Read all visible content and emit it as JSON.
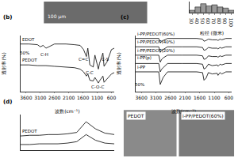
{
  "chart_data": [
    {
      "type": "bar",
      "xlabel": "粒径 (微米)",
      "bins": [
        25,
        35,
        45,
        55,
        65,
        75,
        85,
        95,
        105
      ],
      "values": [
        2,
        5,
        8,
        6,
        7,
        5,
        4,
        2
      ],
      "color": "#999999",
      "xlim": [
        25,
        105
      ],
      "xticks": [
        30,
        40,
        50,
        60,
        70,
        80,
        90,
        100
      ],
      "ylim": [
        0,
        10
      ],
      "tick_labels": "x",
      "grid": false
    },
    {
      "type": "line",
      "title": "(b)",
      "xlabel": "波数(cm⁻¹)",
      "ylabel": "透射率(%)",
      "x": [
        3800,
        3500,
        3200,
        3100,
        3000,
        2900,
        2600,
        2200,
        1900,
        1700,
        1580,
        1480,
        1430,
        1360,
        1240,
        1180,
        1060,
        1020,
        900,
        860,
        760,
        600,
        500
      ],
      "series": [
        {
          "name": "EDOT",
          "color": "#000000",
          "values": [
            88,
            88,
            87,
            84,
            86,
            82,
            88,
            88,
            87,
            86,
            80,
            70,
            82,
            58,
            55,
            72,
            52,
            60,
            75,
            56,
            62,
            80,
            82
          ]
        },
        {
          "name": "PEDOT",
          "color": "#000000",
          "values": [
            58,
            58,
            57,
            57,
            57,
            57,
            56,
            55,
            54,
            52,
            48,
            42,
            45,
            36,
            35,
            40,
            32,
            35,
            42,
            33,
            38,
            45,
            47
          ]
        }
      ],
      "xlim": [
        3800,
        500
      ],
      "xticks": [
        3600,
        3100,
        2600,
        2100,
        1600,
        1100,
        600
      ],
      "ylim": [
        20,
        100
      ],
      "tick_labels": "x",
      "grid": false,
      "annotations": [
        {
          "text": "50%",
          "x": 3650,
          "y": 75
        },
        {
          "text": "C-H",
          "x": 2950,
          "y": 73
        },
        {
          "text": "C=C",
          "x": 1580,
          "y": 66
        },
        {
          "text": "C-C",
          "x": 1360,
          "y": 47
        },
        {
          "text": "C-O-C",
          "x": 1080,
          "y": 26
        },
        {
          "text": "C-S",
          "x": 820,
          "y": 66
        }
      ]
    },
    {
      "type": "line",
      "title": "(c)",
      "xlabel": "波数(cm⁻¹)",
      "ylabel": "透射率(%)",
      "x": [
        3800,
        3500,
        3000,
        2950,
        2900,
        2850,
        2700,
        2200,
        1700,
        1500,
        1450,
        1380,
        1300,
        1170,
        1000,
        970,
        900,
        840,
        700,
        500
      ],
      "series": [
        {
          "name": "i-PP/PEDOT(60%)",
          "color": "#000000",
          "values": [
            96,
            96,
            96,
            90,
            92,
            93,
            96,
            96,
            96,
            95,
            92,
            93,
            95,
            94,
            94,
            93,
            95,
            94,
            96,
            96
          ]
        },
        {
          "name": "i-PP/PEDOT(40%)",
          "color": "#000000",
          "values": [
            84,
            84,
            84,
            76,
            79,
            80,
            84,
            84,
            84,
            83,
            79,
            80,
            83,
            82,
            82,
            81,
            83,
            82,
            84,
            84
          ]
        },
        {
          "name": "i-PP/PEDOT(20%)",
          "color": "#000000",
          "values": [
            72,
            72,
            72,
            62,
            66,
            68,
            72,
            72,
            72,
            71,
            66,
            67,
            71,
            70,
            70,
            69,
            71,
            70,
            72,
            72
          ]
        },
        {
          "name": "i-PP(p)",
          "color": "#000000",
          "values": [
            60,
            60,
            60,
            48,
            52,
            54,
            60,
            60,
            60,
            59,
            52,
            54,
            59,
            57,
            58,
            56,
            59,
            58,
            60,
            60
          ]
        },
        {
          "name": "i-PP",
          "color": "#000000",
          "values": [
            48,
            48,
            48,
            30,
            36,
            40,
            48,
            48,
            48,
            47,
            36,
            39,
            47,
            45,
            46,
            43,
            47,
            45,
            48,
            48
          ]
        }
      ],
      "xlim": [
        3800,
        500
      ],
      "xticks": [
        3600,
        3100,
        2600,
        2100,
        1600,
        1100,
        600
      ],
      "ylim": [
        20,
        100
      ],
      "tick_labels": "x",
      "grid": false,
      "annotations": [
        {
          "text": "50%",
          "x": 3650,
          "y": 30
        }
      ]
    },
    {
      "type": "line",
      "title": "(d)",
      "x": [
        0,
        10,
        20,
        30,
        40,
        50,
        60,
        70,
        80,
        90,
        100
      ],
      "series": [
        {
          "name": "PEDOT",
          "color": "#000000",
          "values": [
            20,
            21,
            21,
            22,
            22,
            23,
            25,
            40,
            30,
            24,
            22
          ]
        },
        {
          "color": "#000000",
          "values": [
            8,
            8,
            9,
            9,
            9,
            10,
            12,
            22,
            14,
            10,
            9
          ]
        }
      ],
      "xlim": [
        0,
        100
      ],
      "ylim": [
        0,
        50
      ],
      "tick_labels": false,
      "grid": false
    }
  ],
  "image_panels": [
    {
      "label": "100 μm"
    },
    {
      "label": "PEDOT"
    },
    {
      "label": "i-PP/PEDOT(60%)"
    }
  ]
}
